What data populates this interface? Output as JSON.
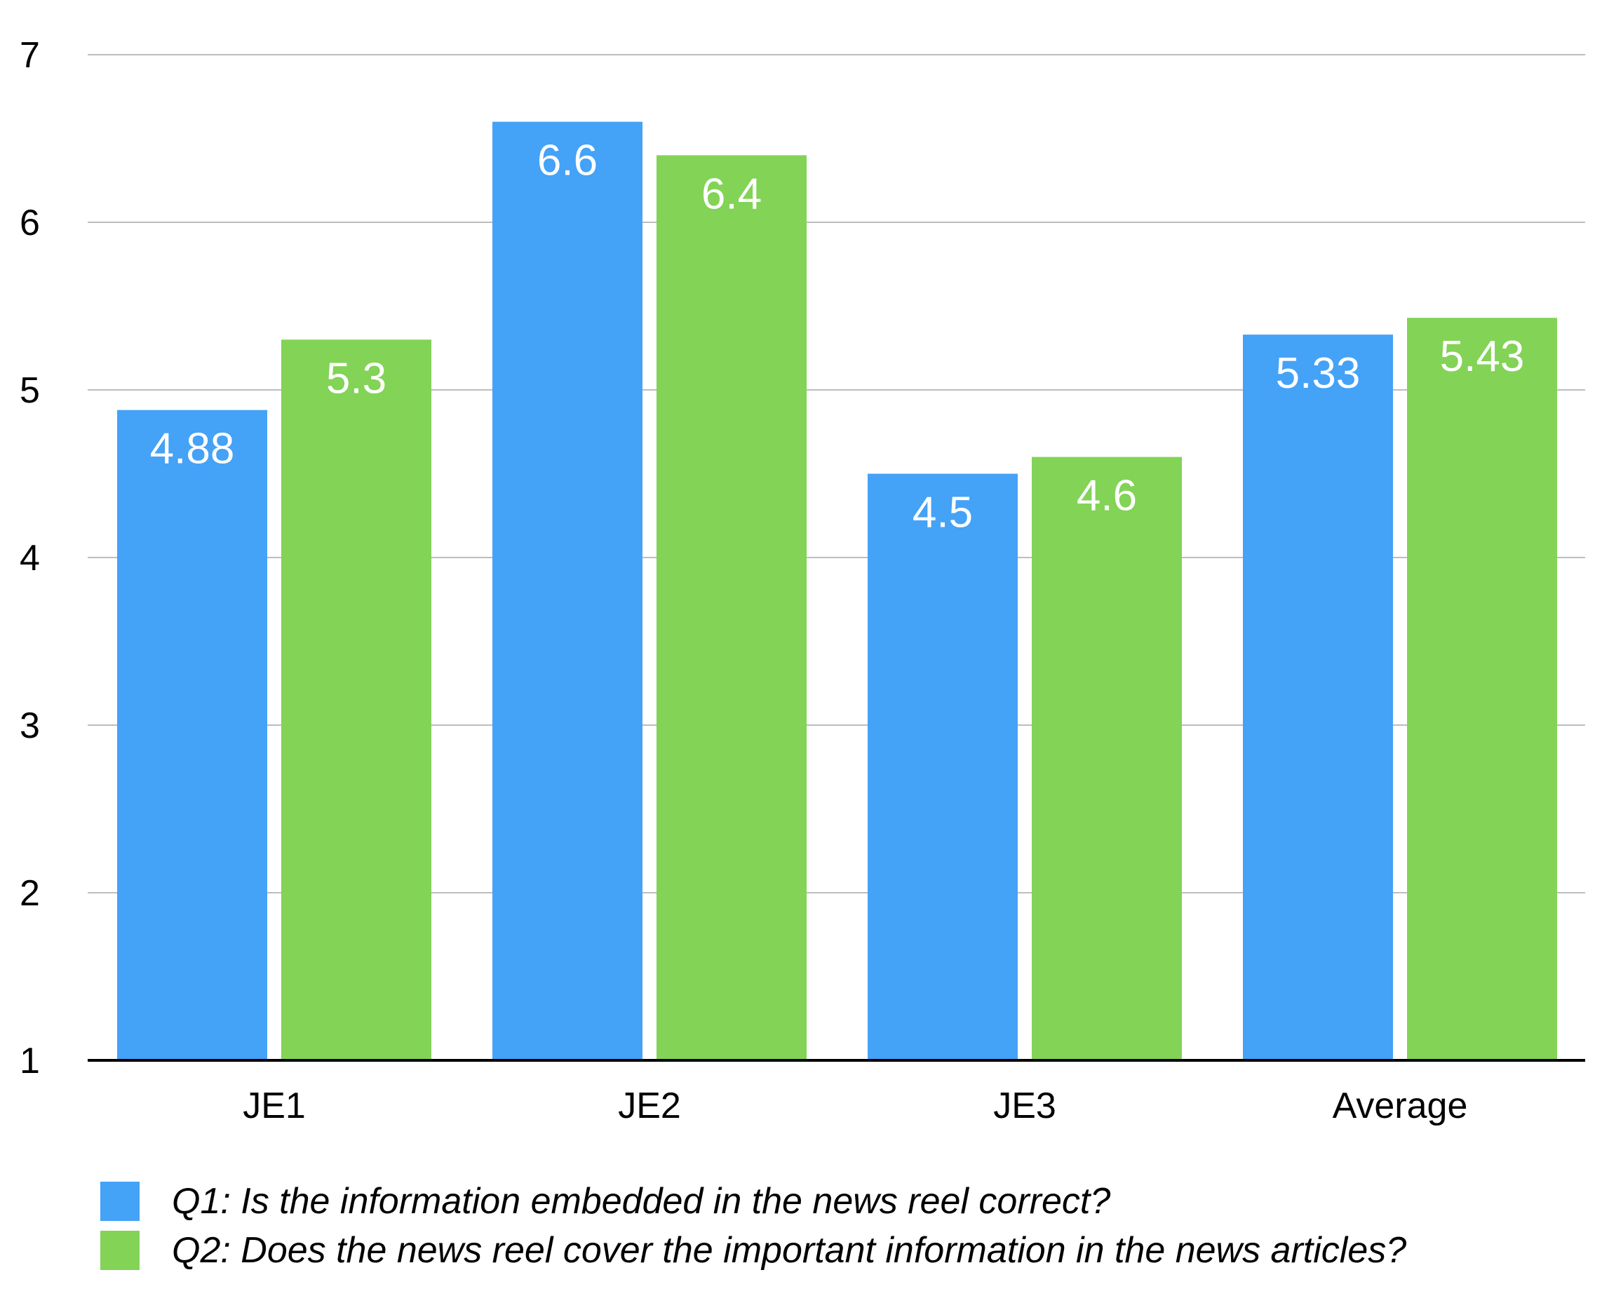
{
  "chart_data": {
    "type": "bar",
    "categories": [
      "JE1",
      "JE2",
      "JE3",
      "Average"
    ],
    "series": [
      {
        "name": "Q1: Is the information embedded in the news reel correct?",
        "values": [
          4.88,
          6.6,
          4.5,
          5.33
        ],
        "labels": [
          "4.88",
          "6.6",
          "4.5",
          "5.33"
        ],
        "color": "#44a2f7"
      },
      {
        "name": "Q2: Does the news reel cover the important information in the news articles?",
        "values": [
          5.3,
          6.4,
          4.6,
          5.43
        ],
        "labels": [
          "5.3",
          "6.4",
          "4.6",
          "5.43"
        ],
        "color": "#82d356"
      }
    ],
    "ylim": [
      1,
      7
    ],
    "yticks": [
      "1",
      "2",
      "3",
      "4",
      "5",
      "6",
      "7"
    ],
    "grid": true,
    "legend_position": "bottom",
    "title": "",
    "xlabel": "",
    "ylabel": ""
  }
}
